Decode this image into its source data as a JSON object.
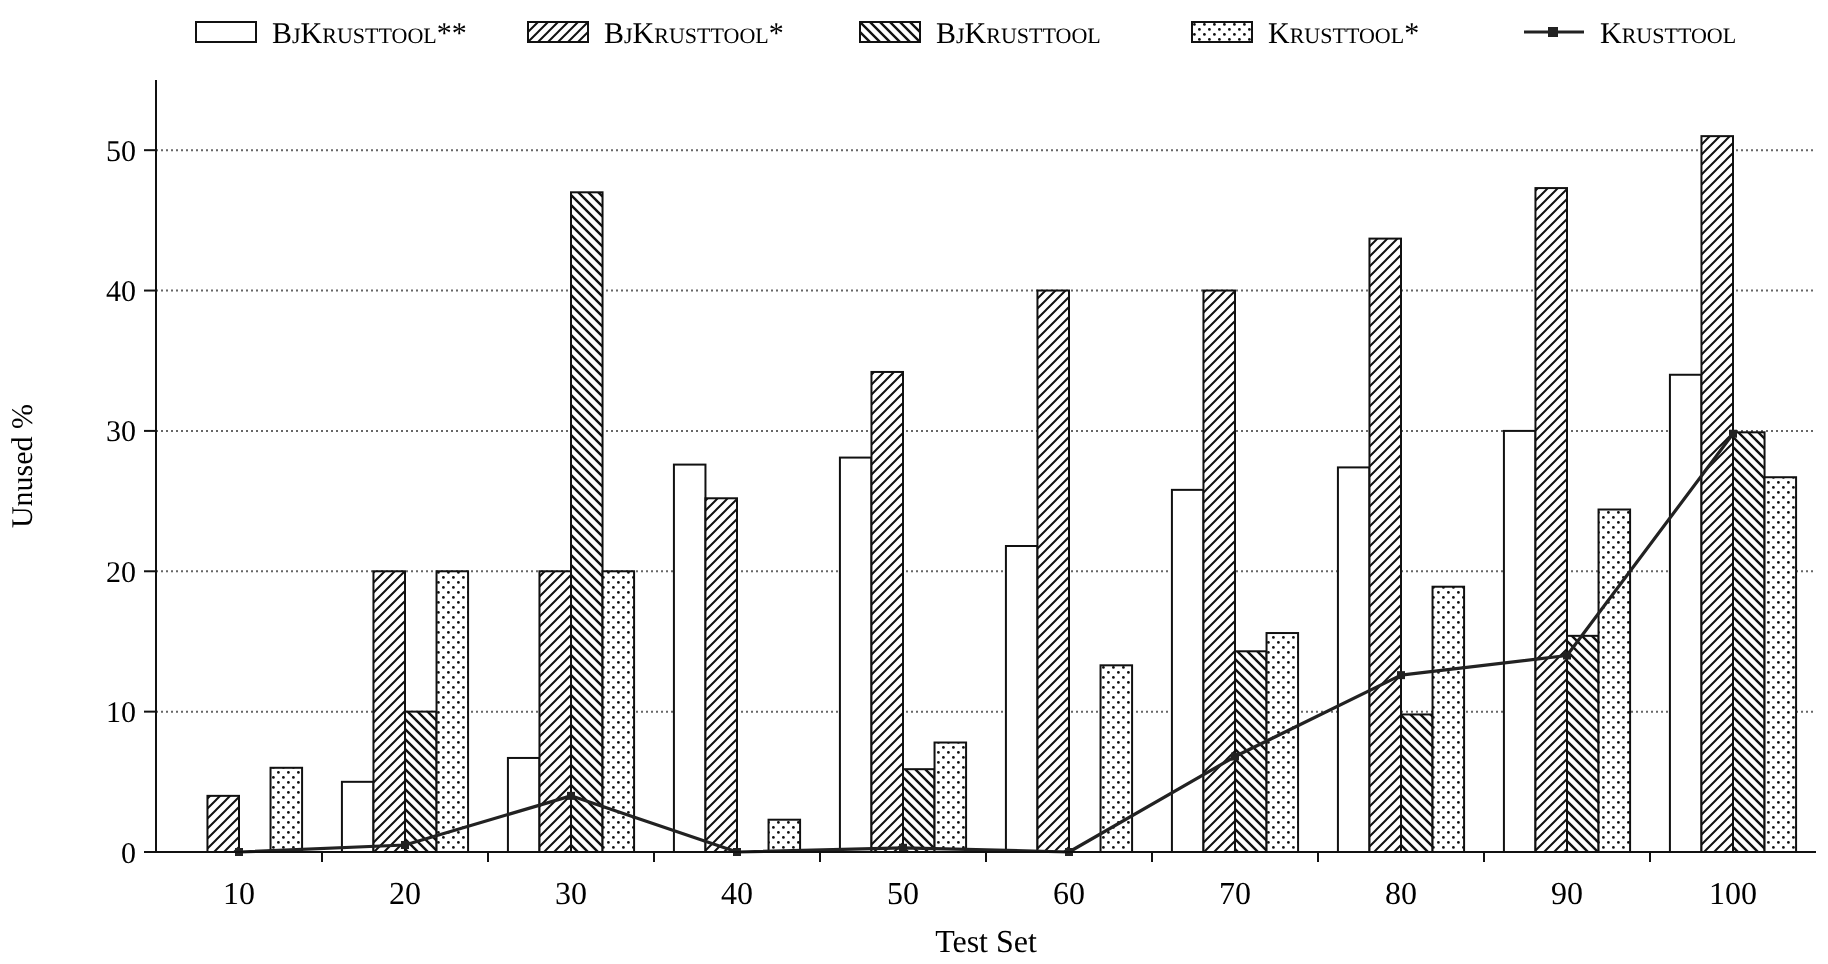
{
  "chart_data": {
    "type": "bar",
    "xlabel": "Test Set",
    "ylabel": "Unused %",
    "categories": [
      "10",
      "20",
      "30",
      "40",
      "50",
      "60",
      "70",
      "80",
      "90",
      "100"
    ],
    "series": [
      {
        "name": "BjKrusttool**",
        "color": "#ffffff",
        "values": [
          null,
          5,
          6.7,
          27.6,
          28.1,
          21.8,
          25.8,
          27.4,
          30,
          34
        ]
      },
      {
        "name": "BjKrusttool*",
        "color": "#111111",
        "values": [
          4,
          20,
          20,
          25.2,
          34.2,
          40,
          40,
          43.7,
          47.3,
          51
        ]
      },
      {
        "name": "BjKrusttool",
        "color": "#111111",
        "values": [
          null,
          10,
          47,
          null,
          5.9,
          null,
          14.3,
          9.8,
          15.4,
          29.9
        ]
      },
      {
        "name": "Krusttool*",
        "color": "#111111",
        "values": [
          6,
          20,
          20,
          2.3,
          7.8,
          13.3,
          15.6,
          18.9,
          24.4,
          26.7
        ]
      },
      {
        "name": "Krusttool",
        "type": "line",
        "color": "#222222",
        "marker": "square",
        "values": [
          0,
          0.5,
          4,
          0,
          0.3,
          0,
          6.8,
          12.6,
          14,
          29.8
        ]
      }
    ],
    "ylim": [
      0,
      55
    ],
    "yticks": [
      0,
      10,
      20,
      30,
      40,
      50
    ],
    "grid": "y",
    "legend": "top"
  }
}
